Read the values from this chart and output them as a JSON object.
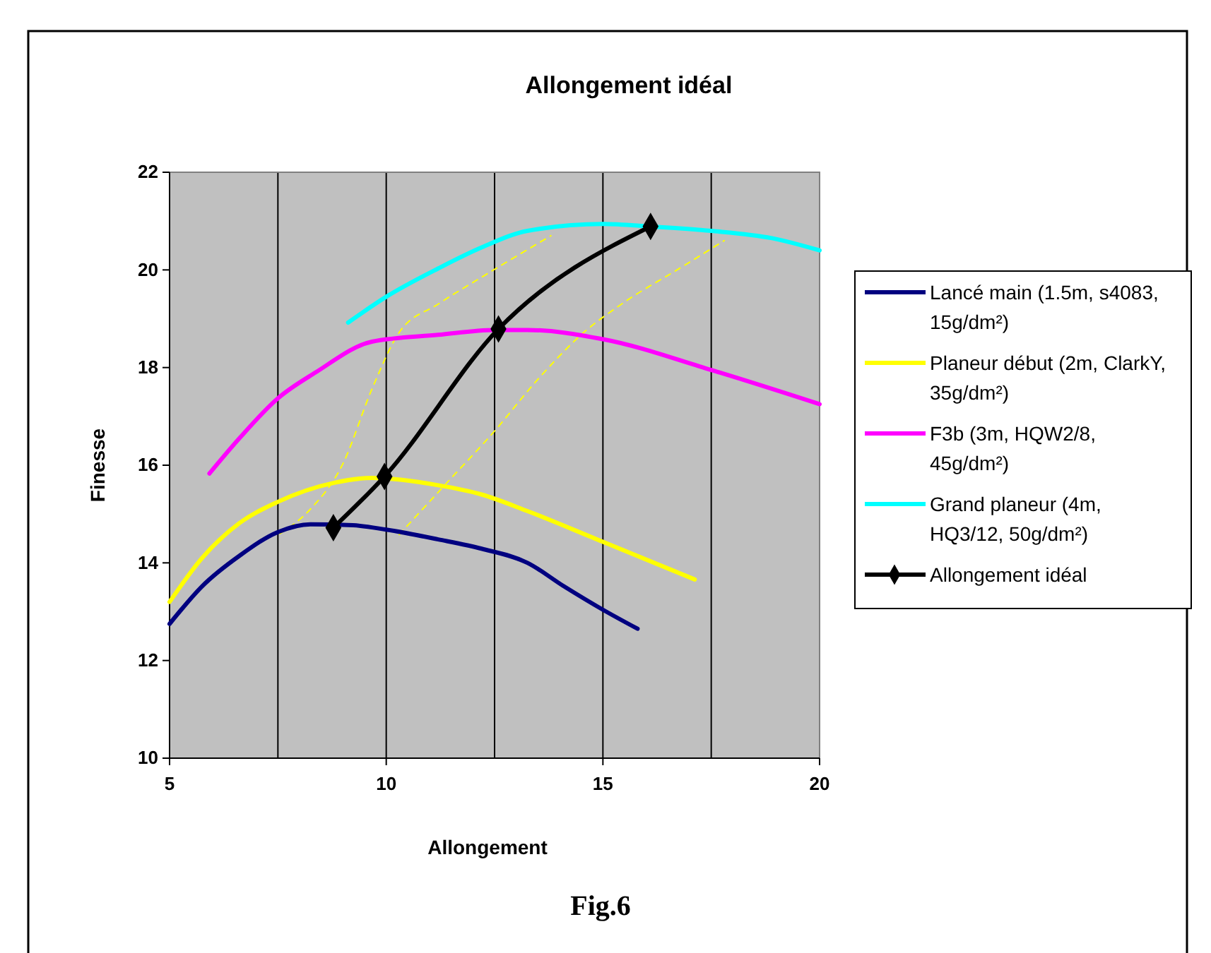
{
  "chart_data": {
    "type": "line",
    "title": "Allongement idéal",
    "xlabel": "Allongement",
    "ylabel": "Finesse",
    "xlim": [
      5,
      20
    ],
    "xticks": [
      5,
      10,
      15,
      20
    ],
    "ylim": [
      10,
      22
    ],
    "yticks": [
      10,
      12,
      14,
      16,
      18,
      20,
      22
    ],
    "grid": "x",
    "legend": "right",
    "annotations": [
      "Fig.6"
    ],
    "series": [
      {
        "name": "Lancé main (1.5m, s4083, 15g/dm²)",
        "color": "#000080",
        "x": [
          5,
          5.75,
          6.62,
          7.5,
          8.25,
          9.23,
          10,
          11.2,
          12.2,
          13.26,
          14.1,
          15.0,
          15.8
        ],
        "values": [
          12.75,
          13.52,
          14.15,
          14.63,
          14.79,
          14.77,
          14.68,
          14.48,
          14.29,
          14.0,
          13.52,
          13.04,
          12.65
        ]
      },
      {
        "name": "Planeur début (2m, ClarkY, 35g/dm²)",
        "color": "#ffff00",
        "x": [
          5,
          5.75,
          6.62,
          7.5,
          8.8,
          9.67,
          11.2,
          12.2,
          13.26,
          15.0,
          17.12
        ],
        "values": [
          13.2,
          14.1,
          14.82,
          15.25,
          15.64,
          15.74,
          15.59,
          15.4,
          15.06,
          14.43,
          13.66
        ]
      },
      {
        "name": "F3b (3m, HQW2/8, 45g/dm²)",
        "color": "#ff00ff",
        "x": [
          5.92,
          6.62,
          7.5,
          8.37,
          9.67,
          11.2,
          12.5,
          13.26,
          15.0,
          17.5,
          20
        ],
        "values": [
          15.83,
          16.56,
          17.37,
          17.9,
          18.53,
          18.67,
          18.77,
          18.77,
          18.58,
          17.95,
          17.25
        ]
      },
      {
        "name": "Grand planeur (4m, HQ3/12, 50g/dm²)",
        "color": "#00ffff",
        "x": [
          9.12,
          10,
          11.2,
          12.2,
          13.26,
          15.0,
          16.08,
          17.5,
          18.9,
          20
        ],
        "values": [
          18.92,
          19.45,
          20.03,
          20.46,
          20.8,
          20.94,
          20.89,
          20.8,
          20.65,
          20.4
        ]
      },
      {
        "name": "Allongement idéal",
        "color": "#000000",
        "marker": "diamond",
        "x": [
          8.78,
          9.96,
          12.59,
          16.1
        ],
        "values": [
          14.72,
          15.77,
          18.79,
          20.89
        ]
      },
      {
        "color": "#ffff00",
        "line_style": "dashed",
        "x": [
          7.55,
          8.25,
          9.0,
          9.67,
          10.3,
          11.2,
          12.2,
          13.8
        ],
        "values": [
          14.6,
          15.1,
          16.03,
          17.56,
          18.72,
          19.3,
          19.85,
          20.7
        ]
      },
      {
        "color": "#ffff00",
        "line_style": "dashed",
        "x": [
          10.3,
          11.4,
          12.5,
          13.5,
          14.56,
          15.43,
          16.84,
          17.8
        ],
        "values": [
          14.58,
          15.64,
          16.7,
          17.76,
          18.72,
          19.3,
          20.07,
          20.6
        ]
      }
    ]
  }
}
